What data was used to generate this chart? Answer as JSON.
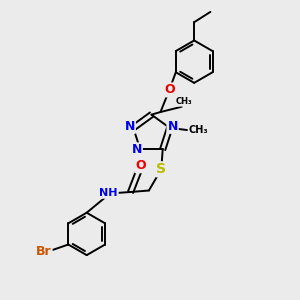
{
  "bg_color": "#ebebeb",
  "bond_color": "#000000",
  "bond_width": 1.4,
  "atom_colors": {
    "N": "#0000ee",
    "O": "#ee0000",
    "S": "#bbbb00",
    "Br": "#cc5500",
    "C": "#000000",
    "H": "#009999"
  },
  "font_size": 8,
  "figsize": [
    3.0,
    3.0
  ],
  "dpi": 100,
  "xlim": [
    0,
    10
  ],
  "ylim": [
    0,
    10
  ]
}
